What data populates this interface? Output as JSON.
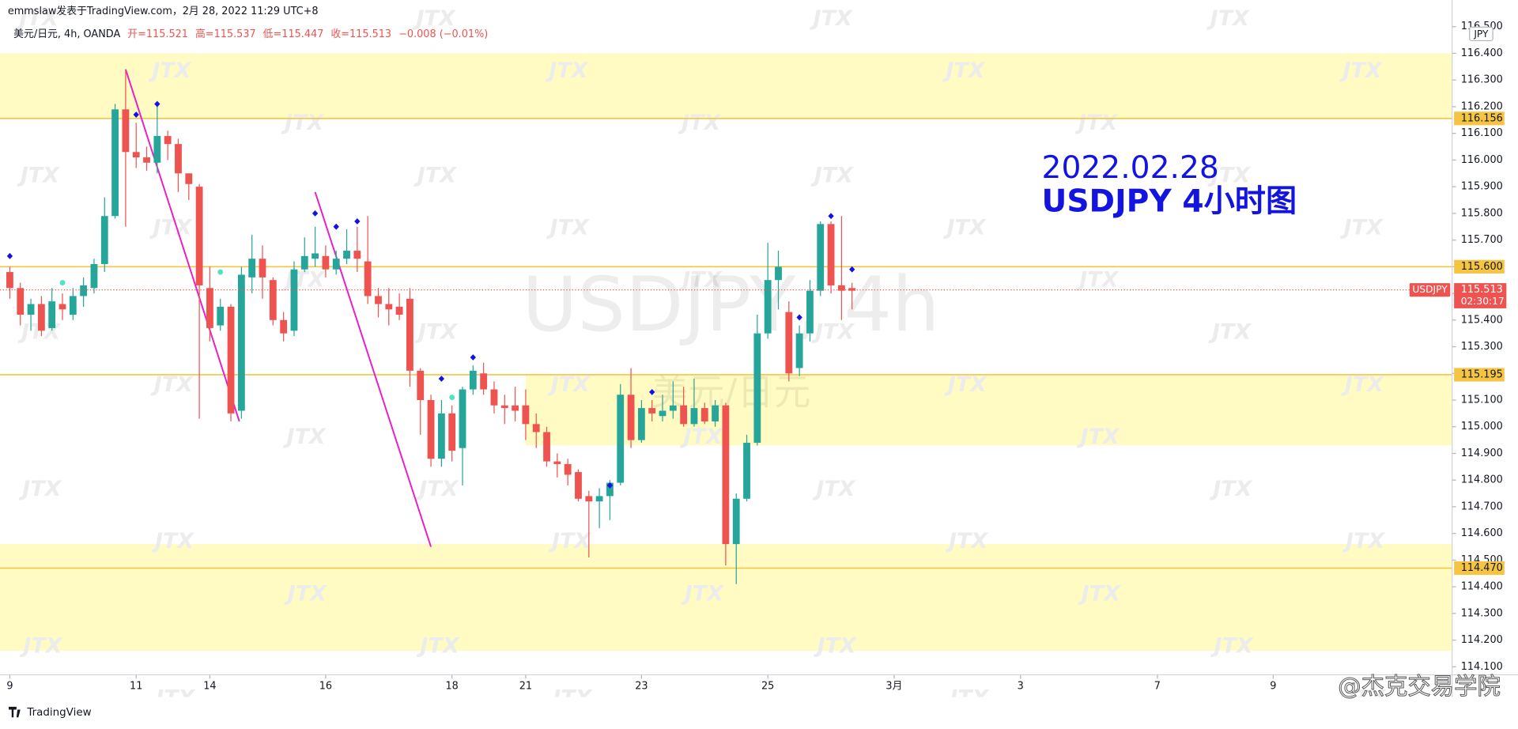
{
  "header": {
    "publisher": "emmslaw发表于TradingView.com，2月 28, 2022 11:29 UTC+8",
    "symbol": "美元/日元, 4h, OANDA",
    "open": "开=115.521",
    "high": "高=115.537",
    "low": "低=115.447",
    "close": "收=115.513",
    "change": "−0.008 (−0.01%)"
  },
  "chart_data": {
    "type": "candlestick",
    "currency": "JPY",
    "watermark_symbol": "USDJPY, 4h",
    "watermark_name": "美元/日元",
    "watermark": "JTX",
    "annotation": [
      "2022.02.28",
      "USDJPY 4小时图"
    ],
    "up_color": "#26a69a",
    "down_color": "#ef5350",
    "ylim": [
      114.07,
      116.6
    ],
    "xlim": [
      -0.93,
      137
    ],
    "yticks": [
      {
        "value": 114.1,
        "label": "114.100"
      },
      {
        "value": 114.2,
        "label": "114.200"
      },
      {
        "value": 114.3,
        "label": "114.300"
      },
      {
        "value": 114.4,
        "label": "114.400"
      },
      {
        "value": 114.5,
        "label": "114.500"
      },
      {
        "value": 114.6,
        "label": "114.600"
      },
      {
        "value": 114.7,
        "label": "114.700"
      },
      {
        "value": 114.8,
        "label": "114.800"
      },
      {
        "value": 114.9,
        "label": "114.900"
      },
      {
        "value": 115,
        "label": "115.000"
      },
      {
        "value": 115.1,
        "label": "115.100"
      },
      {
        "value": 115.2,
        "label": "115.200"
      },
      {
        "value": 115.3,
        "label": "115.300"
      },
      {
        "value": 115.4,
        "label": "115.400"
      },
      {
        "value": 115.5,
        "label": "115.500"
      },
      {
        "value": 115.6,
        "label": "115.600"
      },
      {
        "value": 115.7,
        "label": "115.700"
      },
      {
        "value": 115.8,
        "label": "115.800"
      },
      {
        "value": 115.9,
        "label": "115.900"
      },
      {
        "value": 116,
        "label": "116.000"
      },
      {
        "value": 116.1,
        "label": "116.100"
      },
      {
        "value": 116.2,
        "label": "116.200"
      },
      {
        "value": 116.3,
        "label": "116.300"
      },
      {
        "value": 116.4,
        "label": "116.400"
      },
      {
        "value": 116.5,
        "label": "116.500"
      }
    ],
    "xticks": [
      {
        "value": 0,
        "label": "9"
      },
      {
        "value": 12,
        "label": "11"
      },
      {
        "value": 19,
        "label": "14"
      },
      {
        "value": 30,
        "label": "16"
      },
      {
        "value": 42,
        "label": "18"
      },
      {
        "value": 49,
        "label": "21"
      },
      {
        "value": 60,
        "label": "23"
      },
      {
        "value": 72,
        "label": "25"
      },
      {
        "value": 84,
        "label": "3月"
      },
      {
        "value": 96,
        "label": "3"
      },
      {
        "value": 109,
        "label": "7"
      },
      {
        "value": 120,
        "label": "9"
      }
    ],
    "series": [
      {
        "name": "USDJPY",
        "open": [
          115.58,
          115.52,
          115.42,
          115.46,
          115.37,
          115.46,
          115.42,
          115.49,
          115.52,
          115.61,
          115.79,
          116.19,
          116.03,
          116.01,
          115.99,
          116.09,
          116.06,
          115.95,
          115.9,
          115.52,
          115.38,
          115.45,
          115.06,
          115.56,
          115.63,
          115.55,
          115.4,
          115.36,
          115.59,
          115.63,
          115.64,
          115.59,
          115.63,
          115.66,
          115.62,
          115.49,
          115.46,
          115.45,
          115.48,
          115.21,
          115.1,
          114.88,
          115.05,
          114.92,
          115.14,
          115.2,
          115.14,
          115.08,
          115.08,
          115.08,
          115.01,
          114.98,
          114.87,
          114.86,
          114.83,
          114.74,
          114.72,
          114.74,
          114.79,
          115.12,
          114.95,
          115.07,
          115.04,
          115.06,
          115.08,
          115.01,
          115.07,
          115.02,
          115.08,
          114.56,
          114.73,
          114.94,
          115.35,
          115.55,
          115.43,
          115.22,
          115.35,
          115.51,
          115.76,
          115.53,
          115.52
        ],
        "high": [
          115.6,
          115.54,
          115.48,
          115.49,
          115.52,
          115.5,
          115.52,
          115.56,
          115.63,
          115.86,
          116.21,
          116.34,
          116.14,
          116.05,
          116.2,
          116.11,
          116.08,
          115.95,
          115.91,
          115.6,
          115.48,
          115.46,
          115.6,
          115.72,
          115.68,
          115.56,
          115.43,
          115.62,
          115.71,
          115.75,
          115.68,
          115.66,
          115.74,
          115.75,
          115.79,
          115.52,
          115.52,
          115.5,
          115.52,
          115.22,
          115.12,
          115.1,
          115.08,
          115.15,
          115.23,
          115.24,
          115.17,
          115.12,
          115.15,
          115.14,
          115.05,
          115,
          114.9,
          114.88,
          114.84,
          114.76,
          114.77,
          114.8,
          115.16,
          115.22,
          115.1,
          115.1,
          115.12,
          115.17,
          115.15,
          115.18,
          115.09,
          115.1,
          115.09,
          114.75,
          114.97,
          115.42,
          115.69,
          115.66,
          115.47,
          115.38,
          115.55,
          115.77,
          115.77,
          115.79,
          115.54
        ],
        "low": [
          115.48,
          115.38,
          115.36,
          115.34,
          115.36,
          115.4,
          115.4,
          115.45,
          115.5,
          115.58,
          115.78,
          115.75,
          115.97,
          115.96,
          115.95,
          116,
          115.88,
          115.85,
          115.03,
          115.32,
          115.36,
          115.02,
          115.03,
          115.5,
          115.48,
          115.38,
          115.32,
          115.34,
          115.58,
          115.6,
          115.56,
          115.57,
          115.61,
          115.58,
          115.46,
          115.41,
          115.38,
          115.4,
          115.15,
          114.97,
          114.85,
          114.85,
          114.87,
          114.78,
          115.12,
          115.12,
          115.05,
          115.01,
          115.02,
          114.95,
          114.92,
          114.85,
          114.81,
          114.78,
          114.72,
          114.51,
          114.62,
          114.65,
          114.78,
          114.92,
          114.94,
          115.02,
          115.02,
          115.03,
          115,
          115,
          115.01,
          115,
          114.48,
          114.41,
          114.72,
          114.93,
          115.33,
          115.44,
          115.17,
          115.19,
          115.32,
          115.49,
          115.5,
          115.4,
          115.44
        ],
        "close": [
          115.52,
          115.42,
          115.46,
          115.36,
          115.47,
          115.44,
          115.49,
          115.53,
          115.61,
          115.79,
          116.19,
          116.03,
          116.01,
          115.99,
          116.09,
          116.06,
          115.95,
          115.91,
          115.53,
          115.37,
          115.45,
          115.05,
          115.57,
          115.63,
          115.56,
          115.4,
          115.35,
          115.59,
          115.64,
          115.65,
          115.59,
          115.63,
          115.66,
          115.63,
          115.49,
          115.46,
          115.44,
          115.42,
          115.21,
          115.1,
          114.88,
          115.05,
          114.91,
          115.14,
          115.21,
          115.14,
          115.08,
          115.07,
          115.06,
          115.01,
          114.98,
          114.87,
          114.86,
          114.82,
          114.73,
          114.72,
          114.74,
          114.79,
          115.12,
          114.95,
          115.07,
          115.05,
          115.06,
          115.08,
          115.01,
          115.07,
          115.02,
          115.08,
          114.56,
          114.73,
          114.94,
          115.35,
          115.55,
          115.6,
          115.2,
          115.35,
          115.51,
          115.76,
          115.53,
          115.51,
          115.51
        ]
      }
    ],
    "last_price": {
      "name": "USDJPY",
      "value": 115.513,
      "countdown": "02:30:17",
      "color": "#ef5350"
    },
    "levels": [
      {
        "value": 116.156,
        "label": "116.156"
      },
      {
        "value": 115.6,
        "label": "115.600"
      },
      {
        "value": 115.195,
        "label": "115.195"
      },
      {
        "value": 114.47,
        "label": "114.470"
      }
    ],
    "level_color": "#f5c542",
    "zones": [
      {
        "from": 116.4,
        "to": 116.156,
        "start": -0.93
      },
      {
        "from": 115.195,
        "to": 114.93,
        "start": 49
      },
      {
        "from": 114.56,
        "to": 114.16,
        "start": -0.93
      }
    ],
    "zone_color": "#fffbc2",
    "trendlines": [
      {
        "x1": 11,
        "y1": 116.34,
        "x2": 21.8,
        "y2": 115.02
      },
      {
        "x1": 29,
        "y1": 115.88,
        "x2": 40,
        "y2": 114.55
      }
    ],
    "trendline_color": "#e91ec8",
    "markers": [
      {
        "name": "diamond",
        "color": "#1212e8",
        "x": [
          0,
          12,
          14,
          29,
          31,
          33,
          41,
          44,
          57,
          61,
          75,
          78,
          80
        ],
        "y": [
          115.64,
          116.17,
          116.21,
          115.8,
          115.75,
          115.77,
          115.18,
          115.26,
          114.78,
          115.13,
          115.41,
          115.79,
          115.59
        ]
      },
      {
        "name": "dot",
        "color": "#4fe3c1",
        "x": [
          5,
          20,
          42
        ],
        "y": [
          115.54,
          115.58,
          115.11
        ]
      }
    ]
  },
  "footer": {
    "brand": "TradingView",
    "credit": "@杰克交易学院"
  }
}
